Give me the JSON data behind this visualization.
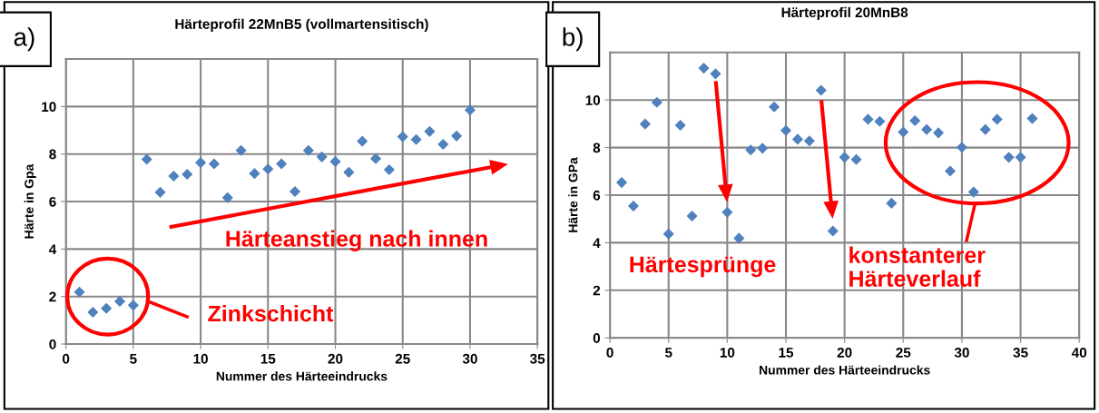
{
  "chart_data": [
    {
      "type": "scatter",
      "title": "Härteprofil 22MnB5 (vollmartensitisch)",
      "xlabel": "Nummer des Härteeindrucks",
      "ylabel": "Härte in Gpa",
      "x": [
        1,
        2,
        3,
        4,
        5,
        6,
        7,
        8,
        9,
        10,
        11,
        12,
        13,
        14,
        15,
        16,
        17,
        18,
        19,
        20,
        21,
        22,
        23,
        24,
        25,
        26,
        27,
        28,
        29,
        30
      ],
      "series": [
        {
          "color": "#4f81bd",
          "values": [
            2.19,
            1.34,
            1.5,
            1.8,
            1.63,
            7.78,
            6.39,
            7.07,
            7.15,
            7.64,
            7.59,
            6.16,
            8.15,
            7.18,
            7.37,
            7.59,
            6.42,
            8.15,
            7.88,
            7.68,
            7.23,
            8.54,
            7.81,
            7.34,
            8.73,
            8.61,
            8.95,
            8.41,
            8.76,
            9.85
          ]
        }
      ],
      "xlim": [
        0,
        35
      ],
      "xticks": [
        0,
        5,
        10,
        15,
        20,
        25,
        30,
        35
      ],
      "ylim": [
        0,
        12
      ],
      "yticks": [
        0,
        2,
        4,
        6,
        8,
        10
      ],
      "grid": true,
      "marker": "diamond",
      "annotations": [
        "a)",
        "Zinkschicht",
        "Härteanstieg nach innen"
      ]
    },
    {
      "type": "scatter",
      "title": "Härteprofil 20MnB8",
      "xlabel": "Nummer des Härteeindrucks",
      "ylabel": "Härte in GPa",
      "x": [
        1,
        2,
        3,
        4,
        5,
        6,
        7,
        8,
        9,
        10,
        11,
        12,
        13,
        14,
        15,
        16,
        17,
        18,
        19,
        20,
        21,
        22,
        23,
        24,
        25,
        26,
        27,
        28,
        29,
        30,
        31,
        32,
        33,
        34,
        35,
        36
      ],
      "series": [
        {
          "color": "#4f81bd",
          "values": [
            6.53,
            5.54,
            8.99,
            9.9,
            4.37,
            8.94,
            5.12,
            11.34,
            11.1,
            5.28,
            4.19,
            7.9,
            7.97,
            9.71,
            8.72,
            8.35,
            8.28,
            10.41,
            4.49,
            7.59,
            7.5,
            9.19,
            9.1,
            5.66,
            8.65,
            9.13,
            8.76,
            8.62,
            7.01,
            8.01,
            6.13,
            8.76,
            9.19,
            7.59,
            7.59,
            9.22
          ]
        }
      ],
      "xlim": [
        0,
        40
      ],
      "xticks": [
        0,
        5,
        10,
        15,
        20,
        25,
        30,
        35,
        40
      ],
      "ylim": [
        0,
        12
      ],
      "yticks": [
        0,
        2,
        4,
        6,
        8,
        10
      ],
      "grid": true,
      "marker": "diamond",
      "annotations": [
        "b)",
        "Härtesprünge",
        "konstanterer\nHärteverlauf"
      ]
    }
  ]
}
